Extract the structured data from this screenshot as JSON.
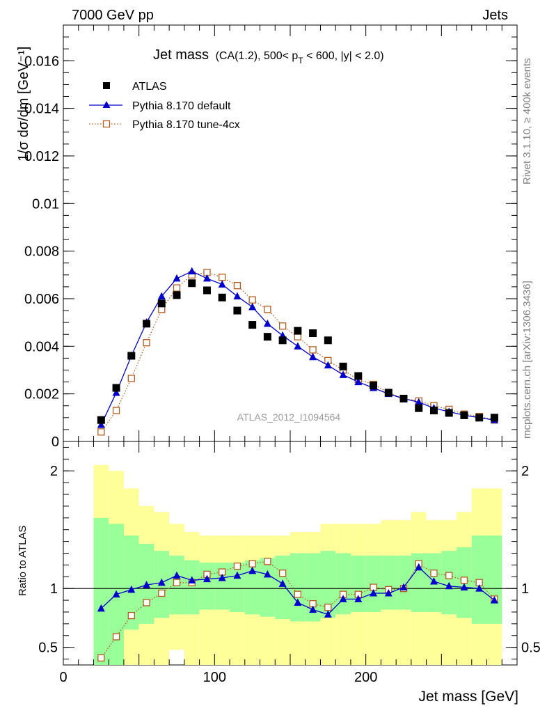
{
  "header": {
    "left": "7000 GeV pp",
    "right": "Jets"
  },
  "side_text": {
    "rivet": "Rivet 3.1.10, ≥ 400k events",
    "mcplots": "mcplots.cern.ch [arXiv:1306.3436]"
  },
  "chart_data": {
    "type": "scatter",
    "title": "Jet mass",
    "subtitle": "(CA(1.2), 500< p_T < 600, |y| < 2.0)",
    "subtitle_parts": {
      "pre": "(CA(1.2), 500< p",
      "sub": "T",
      "post": " < 600, |y| < 2.0)"
    },
    "xlabel": "Jet mass [GeV]",
    "ylabel": "1/σ dσ/dm [GeV⁻¹]",
    "ratio_ylabel": "Ratio to ATLAS",
    "watermark": "ATLAS_2012_I1094564",
    "xlim": [
      0,
      300
    ],
    "ylim": [
      0,
      0.0175
    ],
    "ratio_ylim": [
      0.35,
      2.25
    ],
    "ratio_ytick_values": [
      0.5,
      1,
      2
    ],
    "ratio_ytick_labels": [
      "0.5",
      "1",
      "2"
    ],
    "ytick_values": [
      0,
      0.002,
      0.004,
      0.006,
      0.008,
      0.01,
      0.012,
      0.014,
      0.016
    ],
    "ytick_labels": [
      "0",
      "0.002",
      "0.004",
      "0.006",
      "0.008",
      "0.01",
      "0.012",
      "0.014",
      "0.016"
    ],
    "xtick_values": [
      0,
      100,
      200
    ],
    "xtick_labels": [
      "0",
      "100",
      "200"
    ],
    "legend_position": "top-left",
    "x": [
      25,
      35,
      45,
      55,
      65,
      75,
      85,
      95,
      105,
      115,
      125,
      135,
      145,
      155,
      165,
      175,
      185,
      195,
      205,
      215,
      225,
      235,
      245,
      255,
      265,
      275,
      285
    ],
    "series": [
      {
        "name": "ATLAS",
        "color": "#000000",
        "marker": "square",
        "values": [
          0.0009,
          0.00225,
          0.0036,
          0.00495,
          0.0058,
          0.00615,
          0.00665,
          0.00635,
          0.00605,
          0.0055,
          0.0049,
          0.0044,
          0.00425,
          0.00465,
          0.00455,
          0.00425,
          0.00315,
          0.00275,
          0.00235,
          0.00205,
          0.0018,
          0.0014,
          0.0013,
          0.0012,
          0.0011,
          0.001,
          0.001
        ]
      },
      {
        "name": "Pythia 8.170 default",
        "color": "#0000cc",
        "marker": "triangle",
        "values": [
          0.0007,
          0.00205,
          0.0036,
          0.005,
          0.0061,
          0.00685,
          0.00715,
          0.00685,
          0.0066,
          0.0061,
          0.00565,
          0.00495,
          0.00445,
          0.004,
          0.00355,
          0.0032,
          0.0028,
          0.0025,
          0.00225,
          0.002,
          0.0018,
          0.00165,
          0.0014,
          0.00125,
          0.0011,
          0.001,
          0.0009
        ]
      },
      {
        "name": "Pythia 8.170 tune-4cx",
        "color": "#b35a1f",
        "marker": "open-square",
        "values": [
          0.0004,
          0.0013,
          0.00265,
          0.00415,
          0.00555,
          0.00645,
          0.007,
          0.0071,
          0.0069,
          0.00655,
          0.00595,
          0.00555,
          0.00485,
          0.0044,
          0.00385,
          0.0034,
          0.003,
          0.0026,
          0.0024,
          0.00205,
          0.0018,
          0.0017,
          0.0015,
          0.00135,
          0.00115,
          0.00105,
          0.0009
        ]
      }
    ],
    "ratio": {
      "x": [
        25,
        35,
        45,
        55,
        65,
        75,
        85,
        95,
        105,
        115,
        125,
        135,
        145,
        155,
        165,
        175,
        185,
        195,
        205,
        215,
        225,
        235,
        245,
        255,
        265,
        275,
        285
      ],
      "bands": {
        "bin_edges": [
          20,
          30,
          40,
          50,
          60,
          70,
          80,
          90,
          100,
          110,
          120,
          130,
          140,
          150,
          160,
          170,
          180,
          190,
          200,
          210,
          220,
          230,
          240,
          250,
          260,
          270,
          280,
          290
        ],
        "outer_color": "#ffff99",
        "inner_color": "#99ff99",
        "outer_low": [
          0.35,
          0.35,
          0.35,
          0.35,
          0.35,
          0.48,
          0.35,
          0.35,
          0.35,
          0.35,
          0.35,
          0.35,
          0.35,
          0.35,
          0.35,
          0.35,
          0.35,
          0.35,
          0.35,
          0.35,
          0.35,
          0.35,
          0.35,
          0.35,
          0.35,
          0.35,
          0.35
        ],
        "outer_high": [
          2.05,
          2.0,
          1.85,
          1.7,
          1.65,
          1.55,
          1.48,
          1.45,
          1.45,
          1.45,
          1.45,
          1.45,
          1.45,
          1.48,
          1.48,
          1.55,
          1.55,
          1.55,
          1.55,
          1.58,
          1.58,
          1.65,
          1.58,
          1.58,
          1.65,
          1.85,
          1.85
        ],
        "inner_low": [
          0.35,
          0.35,
          0.65,
          0.7,
          0.75,
          0.78,
          0.78,
          0.82,
          0.82,
          0.8,
          0.78,
          0.76,
          0.74,
          0.72,
          0.72,
          0.75,
          0.78,
          0.8,
          0.8,
          0.82,
          0.82,
          0.8,
          0.8,
          0.78,
          0.75,
          0.7,
          0.7
        ],
        "inner_high": [
          1.6,
          1.55,
          1.45,
          1.38,
          1.32,
          1.28,
          1.24,
          1.22,
          1.22,
          1.22,
          1.24,
          1.26,
          1.28,
          1.3,
          1.3,
          1.32,
          1.3,
          1.28,
          1.28,
          1.28,
          1.28,
          1.3,
          1.3,
          1.32,
          1.35,
          1.45,
          1.45
        ]
      },
      "series": [
        {
          "name": "Pythia 8.170 default",
          "values": [
            0.83,
            0.95,
            0.99,
            1.03,
            1.05,
            1.11,
            1.07,
            1.08,
            1.09,
            1.11,
            1.15,
            1.12,
            1.04,
            0.88,
            0.82,
            0.78,
            0.91,
            0.91,
            0.96,
            0.96,
            1.01,
            1.18,
            1.06,
            1.02,
            1.01,
            1.0,
            0.9
          ]
        },
        {
          "name": "Pythia 8.170 tune-4cx",
          "values": [
            0.41,
            0.59,
            0.77,
            0.88,
            0.96,
            1.05,
            1.05,
            1.12,
            1.14,
            1.19,
            1.21,
            1.23,
            1.13,
            0.95,
            0.87,
            0.84,
            0.95,
            0.95,
            1.01,
            0.99,
            1.0,
            1.21,
            1.13,
            1.11,
            1.07,
            1.05,
            0.91
          ]
        }
      ]
    }
  }
}
